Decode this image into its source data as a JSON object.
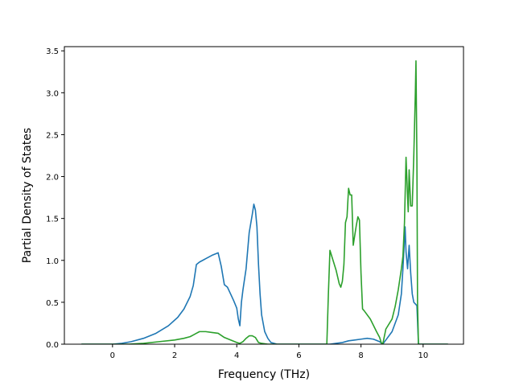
{
  "chart_data": {
    "type": "line",
    "title": "",
    "xlabel": "Frequency (THz)",
    "ylabel": "Partial Density of States",
    "xlim": [
      -1.55,
      11.3
    ],
    "ylim": [
      0,
      3.55
    ],
    "x_ticks": [
      0,
      2,
      4,
      6,
      8,
      10
    ],
    "y_ticks": [
      0.0,
      0.5,
      1.0,
      1.5,
      2.0,
      2.5,
      3.0,
      3.5
    ],
    "x_tick_labels": [
      "0",
      "2",
      "4",
      "6",
      "8",
      "10"
    ],
    "y_tick_labels": [
      "0.0",
      "0.5",
      "1.0",
      "1.5",
      "2.0",
      "2.5",
      "3.0",
      "3.5"
    ],
    "grid": false,
    "legend": "none",
    "series": [
      {
        "color": "#1f77b4",
        "x": [
          -1.0,
          -0.5,
          0.0,
          0.3,
          0.6,
          1.0,
          1.4,
          1.8,
          2.1,
          2.3,
          2.5,
          2.6,
          2.7,
          2.8,
          3.0,
          3.2,
          3.4,
          3.5,
          3.6,
          3.7,
          3.8,
          3.9,
          4.0,
          4.05,
          4.1,
          4.15,
          4.2,
          4.3,
          4.4,
          4.5,
          4.55,
          4.6,
          4.65,
          4.7,
          4.75,
          4.8,
          4.9,
          5.0,
          5.1,
          5.3,
          6.0,
          7.0,
          7.2,
          7.4,
          7.6,
          7.8,
          8.0,
          8.2,
          8.4,
          8.6,
          8.7,
          8.8,
          9.0,
          9.2,
          9.3,
          9.35,
          9.4,
          9.42,
          9.45,
          9.5,
          9.55,
          9.6,
          9.65,
          9.7,
          9.75,
          9.8,
          9.85,
          10.0,
          10.8
        ],
        "y": [
          0.0,
          0.0,
          0.0,
          0.01,
          0.03,
          0.07,
          0.13,
          0.22,
          0.32,
          0.42,
          0.57,
          0.7,
          0.95,
          0.98,
          1.02,
          1.06,
          1.09,
          0.93,
          0.71,
          0.68,
          0.6,
          0.52,
          0.43,
          0.3,
          0.22,
          0.5,
          0.65,
          0.9,
          1.33,
          1.55,
          1.67,
          1.6,
          1.4,
          0.95,
          0.6,
          0.35,
          0.15,
          0.07,
          0.02,
          0.0,
          0.0,
          0.0,
          0.01,
          0.02,
          0.04,
          0.05,
          0.06,
          0.07,
          0.06,
          0.03,
          0.0,
          0.05,
          0.15,
          0.35,
          0.6,
          0.9,
          1.25,
          1.4,
          1.1,
          0.9,
          1.18,
          0.85,
          0.6,
          0.5,
          0.48,
          0.46,
          0.0,
          0.0,
          0.0
        ]
      },
      {
        "color": "#2ca02c",
        "x": [
          -1.0,
          -0.5,
          0.0,
          0.5,
          1.0,
          1.5,
          2.0,
          2.3,
          2.5,
          2.6,
          2.7,
          2.8,
          3.0,
          3.2,
          3.4,
          3.6,
          3.8,
          4.0,
          4.1,
          4.2,
          4.3,
          4.4,
          4.5,
          4.6,
          4.65,
          4.7,
          4.8,
          5.0,
          5.5,
          6.0,
          6.9,
          6.95,
          7.0,
          7.1,
          7.2,
          7.3,
          7.35,
          7.4,
          7.45,
          7.5,
          7.55,
          7.6,
          7.65,
          7.7,
          7.75,
          7.8,
          7.85,
          7.9,
          7.95,
          8.0,
          8.05,
          8.1,
          8.3,
          8.5,
          8.6,
          8.65,
          8.7,
          8.8,
          9.0,
          9.1,
          9.2,
          9.3,
          9.35,
          9.4,
          9.45,
          9.5,
          9.52,
          9.55,
          9.6,
          9.65,
          9.7,
          9.75,
          9.77,
          9.8,
          9.82,
          9.85,
          10.0,
          10.8
        ],
        "y": [
          0.0,
          0.0,
          0.0,
          0.0,
          0.01,
          0.03,
          0.05,
          0.07,
          0.09,
          0.11,
          0.13,
          0.15,
          0.15,
          0.14,
          0.13,
          0.08,
          0.05,
          0.02,
          0.01,
          0.03,
          0.07,
          0.1,
          0.1,
          0.08,
          0.05,
          0.02,
          0.01,
          0.0,
          0.0,
          0.0,
          0.0,
          0.6,
          1.12,
          1.0,
          0.88,
          0.72,
          0.68,
          0.75,
          0.95,
          1.45,
          1.52,
          1.86,
          1.78,
          1.78,
          1.18,
          1.3,
          1.42,
          1.52,
          1.48,
          0.85,
          0.42,
          0.4,
          0.3,
          0.15,
          0.08,
          0.02,
          0.0,
          0.18,
          0.3,
          0.45,
          0.65,
          0.9,
          1.05,
          1.45,
          2.23,
          1.75,
          1.58,
          2.08,
          1.65,
          1.65,
          2.25,
          3.0,
          3.38,
          2.2,
          0.5,
          0.0,
          0.0,
          0.0
        ]
      }
    ]
  }
}
